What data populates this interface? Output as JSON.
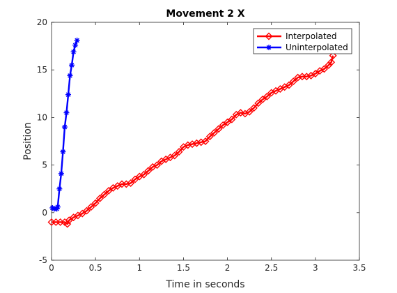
{
  "chart_data": {
    "type": "line",
    "title": "Movement 2 X",
    "xlabel": "Time in seconds",
    "ylabel": "Position",
    "xlim": [
      0,
      3.5
    ],
    "ylim": [
      -5,
      20
    ],
    "xticks": [
      0,
      0.5,
      1,
      1.5,
      2,
      2.5,
      3,
      3.5
    ],
    "xtick_labels": [
      "0",
      "0.5",
      "1",
      "1.5",
      "2",
      "2.5",
      "3",
      "3.5"
    ],
    "yticks": [
      -5,
      0,
      5,
      10,
      15,
      20
    ],
    "ytick_labels": [
      "-5",
      "0",
      "5",
      "10",
      "15",
      "20"
    ],
    "grid": false,
    "legend_position": "top-right",
    "series": [
      {
        "name": "Interpolated",
        "color": "#ff0000",
        "marker": "diamond",
        "x": [
          0.0,
          0.05,
          0.1,
          0.15,
          0.18,
          0.2,
          0.25,
          0.3,
          0.35,
          0.4,
          0.45,
          0.5,
          0.55,
          0.6,
          0.65,
          0.7,
          0.75,
          0.8,
          0.85,
          0.9,
          0.95,
          1.0,
          1.05,
          1.1,
          1.15,
          1.2,
          1.25,
          1.3,
          1.35,
          1.4,
          1.45,
          1.5,
          1.55,
          1.6,
          1.65,
          1.7,
          1.75,
          1.8,
          1.85,
          1.9,
          1.95,
          2.0,
          2.05,
          2.1,
          2.15,
          2.2,
          2.25,
          2.3,
          2.35,
          2.4,
          2.45,
          2.5,
          2.55,
          2.6,
          2.65,
          2.7,
          2.75,
          2.8,
          2.85,
          2.9,
          2.95,
          3.0,
          3.05,
          3.1,
          3.15,
          3.18,
          3.2
        ],
        "y": [
          -1.0,
          -1.0,
          -1.0,
          -1.0,
          -1.2,
          -0.8,
          -0.5,
          -0.3,
          -0.1,
          0.2,
          0.6,
          1.0,
          1.5,
          1.9,
          2.3,
          2.6,
          2.8,
          3.0,
          3.0,
          3.1,
          3.5,
          3.8,
          4.0,
          4.4,
          4.8,
          5.0,
          5.4,
          5.6,
          5.8,
          6.0,
          6.4,
          6.9,
          7.1,
          7.2,
          7.3,
          7.4,
          7.5,
          8.0,
          8.4,
          8.8,
          9.2,
          9.5,
          9.8,
          10.3,
          10.5,
          10.4,
          10.6,
          11.0,
          11.5,
          11.9,
          12.2,
          12.6,
          12.8,
          13.0,
          13.2,
          13.4,
          13.8,
          14.2,
          14.3,
          14.3,
          14.4,
          14.6,
          14.9,
          15.1,
          15.5,
          15.8,
          16.5
        ]
      },
      {
        "name": "Uninterpolated",
        "color": "#0000ff",
        "marker": "star",
        "x": [
          0.01,
          0.03,
          0.06,
          0.07,
          0.09,
          0.11,
          0.13,
          0.15,
          0.17,
          0.19,
          0.21,
          0.23,
          0.25,
          0.27,
          0.29
        ],
        "y": [
          0.5,
          0.4,
          0.4,
          0.6,
          2.5,
          4.1,
          6.4,
          9.0,
          10.5,
          12.4,
          14.4,
          15.5,
          16.9,
          17.6,
          18.1
        ]
      }
    ]
  }
}
